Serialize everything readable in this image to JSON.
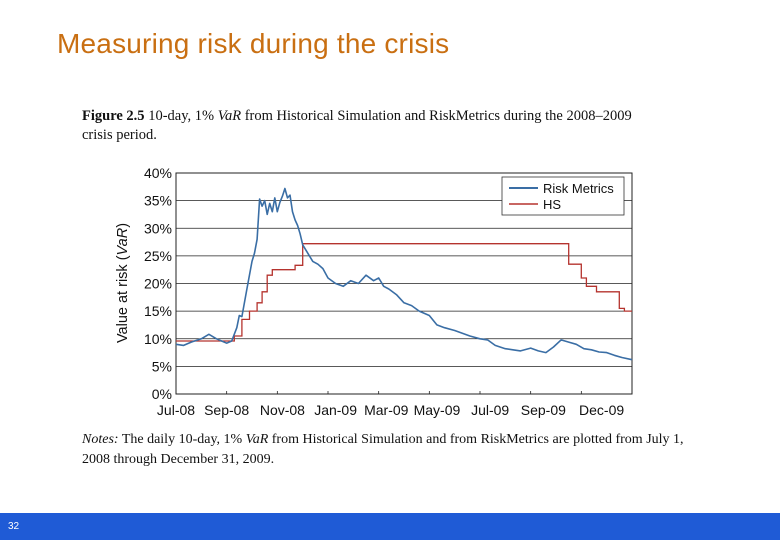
{
  "slide": {
    "title": "Measuring risk during the crisis",
    "page_number": "32"
  },
  "figure": {
    "number": "Figure 2.5",
    "caption_lead": "10-day, 1%",
    "caption_var": "VaR",
    "caption_rest": "from Historical Simulation and RiskMetrics during the 2008–2009 crisis period.",
    "notes_label": "Notes:",
    "notes_lead": "The daily 10-day, 1%",
    "notes_var": "VaR",
    "notes_rest": "from Historical Simulation and from RiskMetrics are plotted from July 1, 2008 through December 31, 2009."
  },
  "colors": {
    "title": "#c96f12",
    "riskmetrics": "#3a6ea5",
    "hs": "#b5332e",
    "footer": "#1f5bd6"
  },
  "chart_data": {
    "type": "line",
    "title": "",
    "ylabel_prefix": "Value at risk (",
    "ylabel_var": "VaR",
    "ylabel_suffix": ")",
    "xlabel": "",
    "ylim": [
      0,
      40
    ],
    "xlim": [
      0,
      18
    ],
    "yticks": [
      0,
      5,
      10,
      15,
      20,
      25,
      30,
      35,
      40
    ],
    "ytick_labels": [
      "0%",
      "5%",
      "10%",
      "15%",
      "20%",
      "25%",
      "30%",
      "35%",
      "40%"
    ],
    "xticks": [
      0,
      2,
      4,
      6,
      8,
      10,
      12,
      14,
      16,
      18
    ],
    "xtick_labels": [
      "Jul-08",
      "Sep-08",
      "Nov-08",
      "Jan-09",
      "Mar-09",
      "May-09",
      "Jul-09",
      "Sep-09",
      "Dec-09"
    ],
    "xtick_label_positions": [
      0,
      2,
      4.2,
      6.3,
      8.3,
      10.3,
      12.4,
      14.5,
      16.8
    ],
    "grid": "horizontal",
    "legend_position": "top-right",
    "series": [
      {
        "name": "Risk Metrics",
        "x": [
          0,
          0.3,
          0.6,
          1.0,
          1.3,
          1.6,
          1.8,
          2.0,
          2.2,
          2.4,
          2.5,
          2.6,
          2.8,
          3.0,
          3.1,
          3.2,
          3.3,
          3.4,
          3.5,
          3.6,
          3.7,
          3.8,
          3.9,
          4.0,
          4.1,
          4.2,
          4.3,
          4.4,
          4.5,
          4.6,
          4.7,
          4.8,
          4.9,
          5.0,
          5.2,
          5.4,
          5.6,
          5.8,
          6.0,
          6.3,
          6.6,
          6.9,
          7.2,
          7.5,
          7.8,
          8.0,
          8.2,
          8.4,
          8.7,
          9.0,
          9.3,
          9.6,
          10.0,
          10.3,
          10.6,
          11.0,
          11.3,
          11.6,
          12.0,
          12.3,
          12.6,
          13.0,
          13.3,
          13.6,
          14.0,
          14.3,
          14.6,
          14.9,
          15.2,
          15.5,
          15.8,
          16.1,
          16.4,
          16.7,
          17.0,
          17.3,
          17.6,
          18.0
        ],
        "y": [
          9,
          8.8,
          9.4,
          10,
          10.8,
          10,
          9.6,
          9.2,
          9.6,
          12,
          14.2,
          14,
          19,
          24,
          25.5,
          28,
          35.3,
          34,
          35,
          32.5,
          34.5,
          33,
          35.5,
          33,
          34.7,
          35.8,
          37.2,
          35.5,
          36,
          33,
          31.5,
          30.5,
          29,
          27,
          25.5,
          24,
          23.5,
          22.7,
          21,
          20,
          19.5,
          20.5,
          20,
          21.5,
          20.5,
          21,
          19.5,
          19,
          18,
          16.5,
          16,
          15,
          14.2,
          12.5,
          12,
          11.5,
          11,
          10.5,
          10,
          9.8,
          8.8,
          8.2,
          8,
          7.8,
          8.3,
          7.8,
          7.5,
          8.5,
          9.8,
          9.4,
          9.0,
          8.2,
          8.0,
          7.6,
          7.5,
          7.0,
          6.6,
          6.2
        ]
      },
      {
        "name": "HS",
        "steps": [
          [
            0,
            9.6
          ],
          [
            2.3,
            9.6
          ],
          [
            2.3,
            10.5
          ],
          [
            2.6,
            10.5
          ],
          [
            2.6,
            13.5
          ],
          [
            2.9,
            13.5
          ],
          [
            2.9,
            15.0
          ],
          [
            3.2,
            15.0
          ],
          [
            3.2,
            16.5
          ],
          [
            3.4,
            16.5
          ],
          [
            3.4,
            18.5
          ],
          [
            3.6,
            18.5
          ],
          [
            3.6,
            21.5
          ],
          [
            3.8,
            21.5
          ],
          [
            3.8,
            22.5
          ],
          [
            4.7,
            22.5
          ],
          [
            4.7,
            23.3
          ],
          [
            5.0,
            23.3
          ],
          [
            5.0,
            27.2
          ],
          [
            15.5,
            27.2
          ],
          [
            15.5,
            23.5
          ],
          [
            16.0,
            23.5
          ],
          [
            16.0,
            21.0
          ],
          [
            16.2,
            21.0
          ],
          [
            16.2,
            19.5
          ],
          [
            16.6,
            19.5
          ],
          [
            16.6,
            18.5
          ],
          [
            17.5,
            18.5
          ],
          [
            17.5,
            15.5
          ],
          [
            17.7,
            15.5
          ],
          [
            17.7,
            15.0
          ],
          [
            18.0,
            15.0
          ]
        ]
      }
    ]
  }
}
